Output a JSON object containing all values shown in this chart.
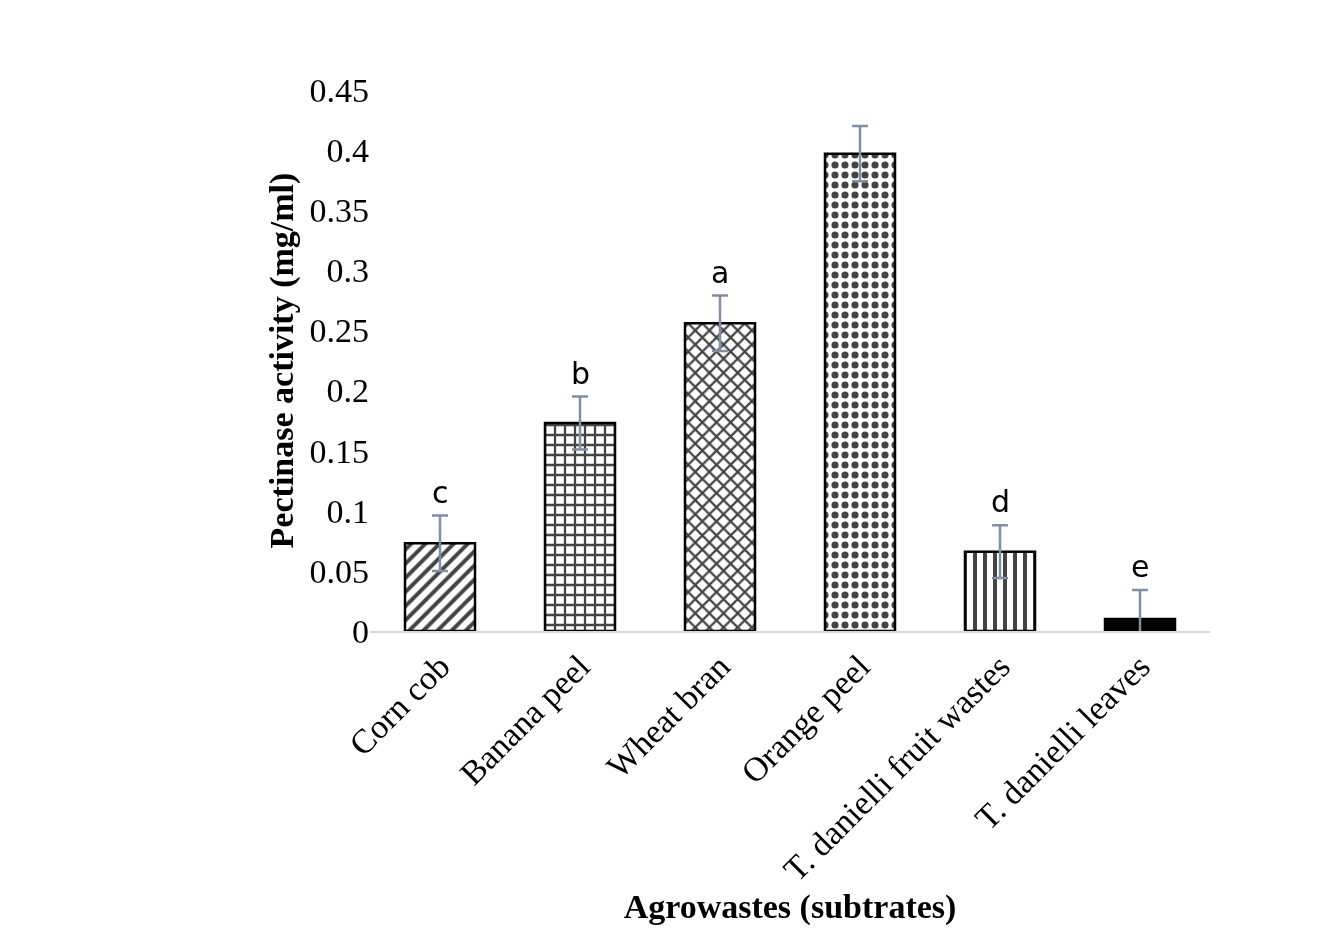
{
  "chart_data": {
    "type": "bar",
    "xlabel": "Agrowastes (subtrates)",
    "ylabel": "Pectinase activity (mg/ml)",
    "categories": [
      "Corn cob",
      "Banana peel",
      "Wheat bran",
      "Orange peel",
      "T. danielli fruit wastes",
      "T. danielli leaves"
    ],
    "values": [
      0.073,
      0.173,
      0.256,
      0.397,
      0.066,
      0.01
    ],
    "errors": [
      0.023,
      0.022,
      0.023,
      0.023,
      0.022,
      0.024
    ],
    "color": "#000000",
    "ylim": [
      0,
      0.45
    ],
    "yticks": [
      0,
      0.05,
      0.1,
      0.15,
      0.2,
      0.25,
      0.3,
      0.35,
      0.4,
      0.45
    ],
    "value_labels": [
      "c",
      "b",
      "a",
      null,
      "d",
      "e"
    ]
  }
}
